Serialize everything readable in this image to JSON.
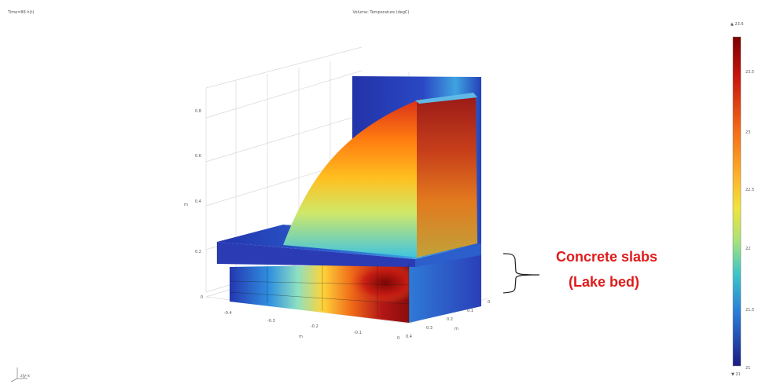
{
  "header": {
    "time_label": "Time=86 h(t)",
    "title": "Volume: Temperature (degC)"
  },
  "axes": {
    "z_label": "m",
    "z_ticks": [
      "0.8",
      "0.6",
      "0.4",
      "0.2",
      "0"
    ],
    "x_label": "m",
    "x_ticks": [
      "-0.4",
      "-0.3",
      "-0.2",
      "-0.1",
      "0"
    ],
    "y_label": "m",
    "y_ticks": [
      "0",
      "0.1",
      "0.2",
      "0.3",
      "0.4"
    ]
  },
  "colorbar": {
    "max_label": "▲ 23.6",
    "min_label": "▼ 21",
    "ticks": [
      "23.5",
      "23",
      "22.5",
      "22",
      "21.5",
      "21"
    ],
    "colors": [
      "#8b0000",
      "#d7191c",
      "#f46d43",
      "#fdae61",
      "#ffd93a",
      "#e6f598",
      "#66c2a5",
      "#2fa4d8",
      "#2c5cc8",
      "#23238f"
    ]
  },
  "annotation": {
    "line1": "Concrete slabs",
    "line2": "(Lake bed)",
    "color": "#e01b1b"
  },
  "triad": {
    "label": "z|y-x"
  }
}
